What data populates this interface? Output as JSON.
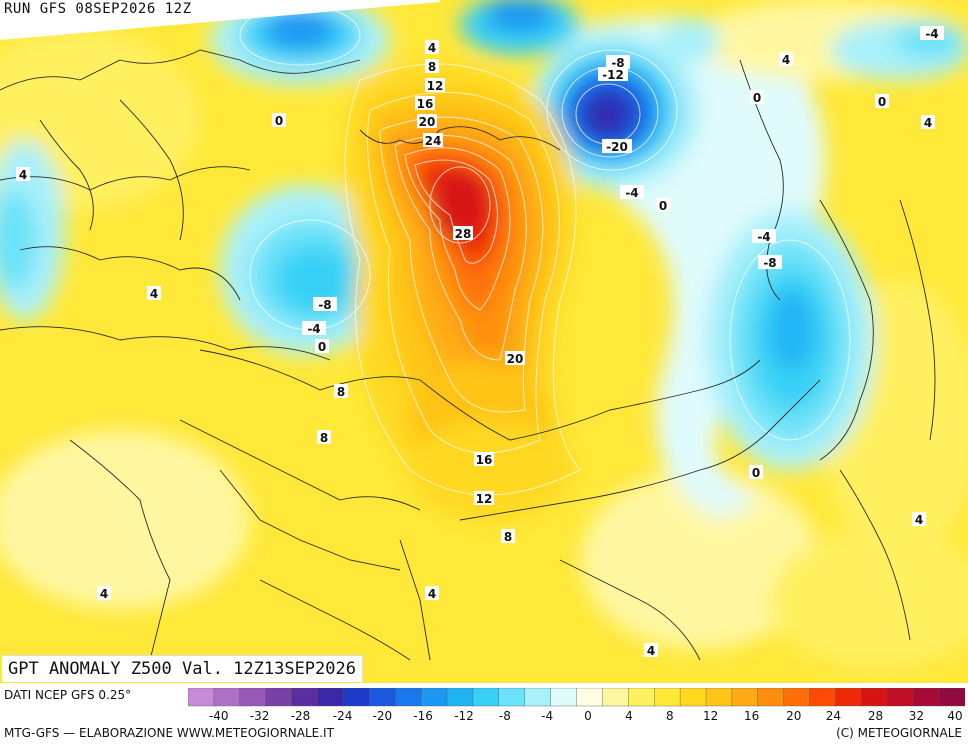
{
  "header": {
    "run_label": "RUN GFS 08SEP2026 12Z"
  },
  "title": "GPT ANOMALY Z500 Val. 12Z13SEP2026",
  "footer": {
    "data_source": "DATI NCEP GFS 0.25°",
    "credit_left": "MTG-GFS — ELABORAZIONE WWW.METEOGIORNALE.IT",
    "credit_right": "(C) METEOGIORNALE"
  },
  "colorbar": {
    "colors": [
      "#c88ad8",
      "#b070c8",
      "#9858b8",
      "#7a40a8",
      "#5a2ea0",
      "#3a28a8",
      "#1e3ac8",
      "#1a58e0",
      "#1a78ee",
      "#1c98f2",
      "#20b4f4",
      "#38d0f6",
      "#6ae2f8",
      "#a8f0fa",
      "#e0fbfc",
      "#fffde0",
      "#fff7a0",
      "#fff060",
      "#ffe838",
      "#ffd820",
      "#ffc418",
      "#ffaa12",
      "#ff8e0c",
      "#ff6e08",
      "#ff4a06",
      "#f02a06",
      "#d81412",
      "#c00c24",
      "#a80a36",
      "#900a40"
    ],
    "ticks": [
      "-40",
      "-32",
      "-28",
      "-24",
      "-20",
      "-16",
      "-12",
      "-8",
      "-4",
      "0",
      "4",
      "8",
      "12",
      "16",
      "20",
      "24",
      "28",
      "32",
      "40"
    ]
  },
  "contour_labels": [
    "4",
    "8",
    "12",
    "16",
    "20",
    "24",
    "28",
    "20",
    "16",
    "12",
    "8",
    "-8",
    "-12",
    "-20",
    "-4",
    "0",
    "-4",
    "-8",
    "0",
    "4",
    "-4",
    "4",
    "0",
    "4",
    "0",
    "0",
    "4",
    "-8",
    "-4",
    "0",
    "8",
    "8",
    "4",
    "4",
    "4",
    "4"
  ],
  "colors": {
    "land_border": "#2a2a2a",
    "contour": "#ffffff",
    "background_zero": "#e8fbfc"
  }
}
